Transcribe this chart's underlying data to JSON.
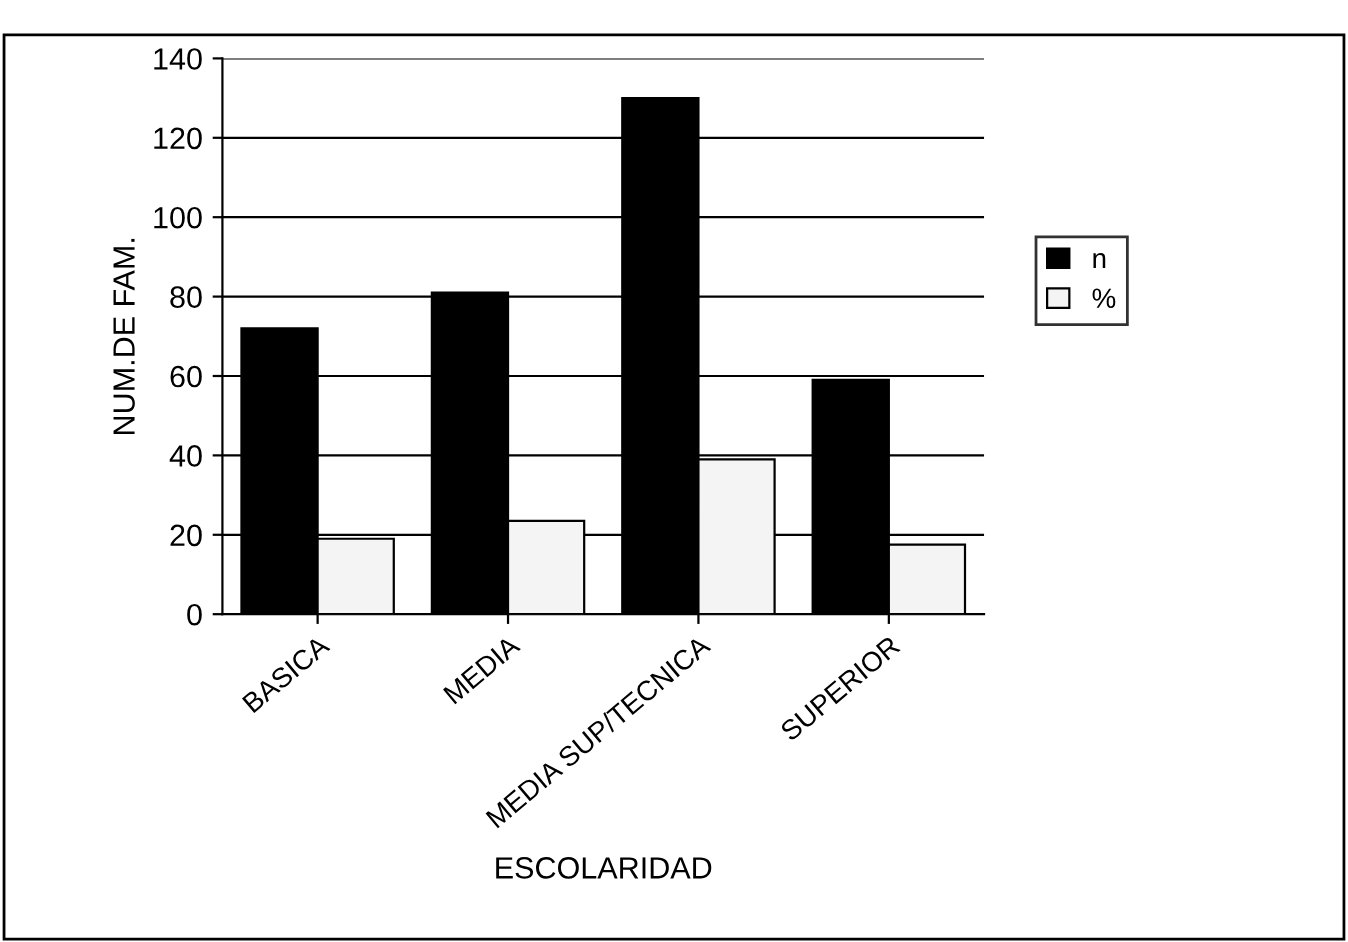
{
  "chart_data": {
    "type": "bar",
    "xlabel": "ESCOLARIDAD",
    "ylabel": "NUM.DE FAM.",
    "categories": [
      "BASICA",
      "MEDIA",
      "MEDIA SUP/TECNICA",
      "SUPERIOR"
    ],
    "series": [
      {
        "name": "n",
        "color": "#000000",
        "values": [
          72,
          81,
          130,
          59
        ]
      },
      {
        "name": "%",
        "color": "#f4f4f4",
        "values": [
          19,
          23.5,
          39,
          17.5
        ]
      }
    ],
    "ylim": [
      0,
      140
    ],
    "yticks": [
      0,
      20,
      40,
      60,
      80,
      100,
      120,
      140
    ],
    "grid": "y",
    "legend": "right"
  }
}
